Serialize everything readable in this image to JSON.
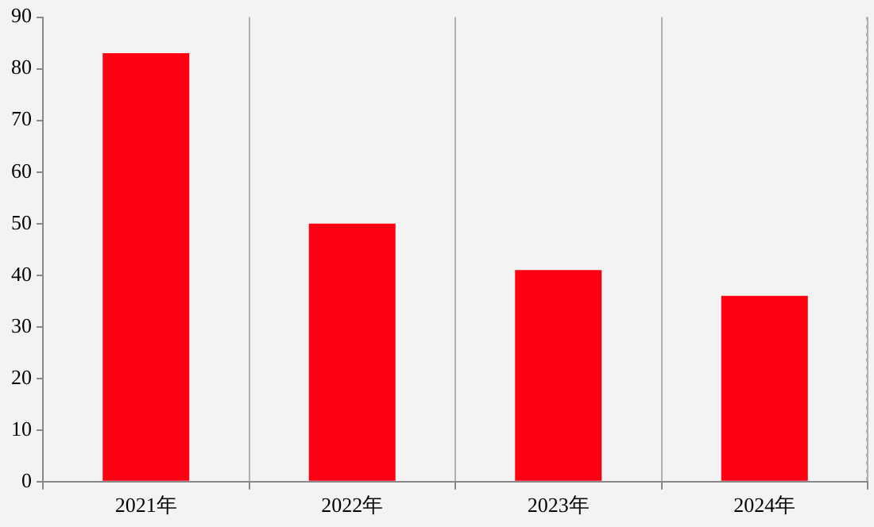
{
  "chart_data": {
    "type": "bar",
    "categories": [
      "2021年",
      "2022年",
      "2023年",
      "2024年"
    ],
    "values": [
      83,
      50,
      41,
      36
    ],
    "color": "#ff0013",
    "ylim": [
      0,
      90
    ],
    "yticks": [
      0,
      10,
      20,
      30,
      40,
      50,
      60,
      70,
      80,
      90
    ],
    "grid": "x"
  }
}
